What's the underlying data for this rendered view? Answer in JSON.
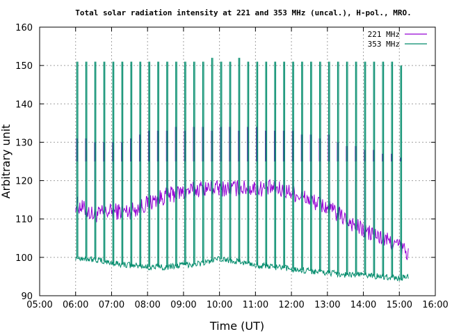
{
  "chart_data": {
    "type": "line",
    "title": "Total solar radiation intensity at 221 and 353 MHz (uncal.), H-pol., MRO.",
    "xlabel": "Time (UT)",
    "ylabel": "Arbitrary unit",
    "xlim": [
      "05:00",
      "16:00"
    ],
    "ylim": [
      90,
      160
    ],
    "xticks": [
      "05:00",
      "06:00",
      "07:00",
      "08:00",
      "09:00",
      "10:00",
      "11:00",
      "12:00",
      "13:00",
      "14:00",
      "15:00",
      "16:00"
    ],
    "yticks": [
      90,
      100,
      110,
      120,
      130,
      140,
      150,
      160
    ],
    "grid": true,
    "legend_position": "top-right",
    "series": [
      {
        "name": "221 MHz",
        "color": "#9400d3",
        "x": [
          "06:00",
          "06:30",
          "07:00",
          "07:30",
          "08:00",
          "08:30",
          "09:00",
          "09:30",
          "10:00",
          "10:30",
          "11:00",
          "11:30",
          "12:00",
          "12:30",
          "13:00",
          "13:30",
          "14:00",
          "14:30",
          "15:00",
          "15:15"
        ],
        "values": [
          114,
          111,
          112,
          112,
          114,
          116,
          117,
          118,
          118,
          118,
          118,
          118,
          117,
          115,
          113,
          110,
          107,
          105,
          103,
          101
        ],
        "spikes": [
          {
            "time": "06:02",
            "value": 131
          },
          {
            "time": "06:17",
            "value": 131
          },
          {
            "time": "06:32",
            "value": 130
          },
          {
            "time": "06:47",
            "value": 130
          },
          {
            "time": "07:02",
            "value": 130
          },
          {
            "time": "07:17",
            "value": 130
          },
          {
            "time": "07:32",
            "value": 131
          },
          {
            "time": "07:47",
            "value": 132
          },
          {
            "time": "08:02",
            "value": 133
          },
          {
            "time": "08:17",
            "value": 133
          },
          {
            "time": "08:32",
            "value": 133
          },
          {
            "time": "08:47",
            "value": 134
          },
          {
            "time": "09:02",
            "value": 133
          },
          {
            "time": "09:17",
            "value": 134
          },
          {
            "time": "09:32",
            "value": 134
          },
          {
            "time": "09:47",
            "value": 133
          },
          {
            "time": "10:02",
            "value": 134
          },
          {
            "time": "10:17",
            "value": 134
          },
          {
            "time": "10:32",
            "value": 133
          },
          {
            "time": "10:47",
            "value": 134
          },
          {
            "time": "11:02",
            "value": 134
          },
          {
            "time": "11:17",
            "value": 133
          },
          {
            "time": "11:32",
            "value": 133
          },
          {
            "time": "11:47",
            "value": 133
          },
          {
            "time": "12:02",
            "value": 133
          },
          {
            "time": "12:17",
            "value": 132
          },
          {
            "time": "12:32",
            "value": 132
          },
          {
            "time": "12:47",
            "value": 131
          },
          {
            "time": "13:02",
            "value": 132
          },
          {
            "time": "13:17",
            "value": 130
          },
          {
            "time": "13:32",
            "value": 129
          },
          {
            "time": "13:47",
            "value": 129
          },
          {
            "time": "14:02",
            "value": 128
          },
          {
            "time": "14:17",
            "value": 128
          },
          {
            "time": "14:32",
            "value": 127
          },
          {
            "time": "14:47",
            "value": 127
          },
          {
            "time": "15:02",
            "value": 126
          }
        ]
      },
      {
        "name": "353 MHz",
        "color": "#008b6b",
        "x": [
          "06:00",
          "06:30",
          "07:00",
          "07:30",
          "08:00",
          "08:30",
          "09:00",
          "09:30",
          "10:00",
          "10:30",
          "11:00",
          "11:30",
          "12:00",
          "12:30",
          "13:00",
          "13:30",
          "14:00",
          "14:30",
          "15:00",
          "15:15"
        ],
        "values": [
          100,
          99.5,
          98.5,
          98,
          97.5,
          97.5,
          98,
          98.5,
          99.5,
          99,
          98,
          97.5,
          97,
          96.5,
          96,
          95.5,
          95.5,
          95,
          94.5,
          95
        ],
        "spikes": [
          {
            "time": "06:02",
            "value": 151
          },
          {
            "time": "06:17",
            "value": 151
          },
          {
            "time": "06:32",
            "value": 151
          },
          {
            "time": "06:47",
            "value": 151
          },
          {
            "time": "07:02",
            "value": 151
          },
          {
            "time": "07:17",
            "value": 151
          },
          {
            "time": "07:32",
            "value": 151
          },
          {
            "time": "07:47",
            "value": 151
          },
          {
            "time": "08:02",
            "value": 151
          },
          {
            "time": "08:17",
            "value": 151
          },
          {
            "time": "08:32",
            "value": 151
          },
          {
            "time": "08:47",
            "value": 151
          },
          {
            "time": "09:02",
            "value": 151
          },
          {
            "time": "09:17",
            "value": 151
          },
          {
            "time": "09:32",
            "value": 151
          },
          {
            "time": "09:47",
            "value": 152
          },
          {
            "time": "10:02",
            "value": 151
          },
          {
            "time": "10:17",
            "value": 151
          },
          {
            "time": "10:32",
            "value": 152
          },
          {
            "time": "10:47",
            "value": 151
          },
          {
            "time": "11:02",
            "value": 151
          },
          {
            "time": "11:17",
            "value": 151
          },
          {
            "time": "11:32",
            "value": 151
          },
          {
            "time": "11:47",
            "value": 151
          },
          {
            "time": "12:02",
            "value": 151
          },
          {
            "time": "12:17",
            "value": 151
          },
          {
            "time": "12:32",
            "value": 151
          },
          {
            "time": "12:47",
            "value": 151
          },
          {
            "time": "13:02",
            "value": 151
          },
          {
            "time": "13:17",
            "value": 151
          },
          {
            "time": "13:32",
            "value": 151
          },
          {
            "time": "13:47",
            "value": 151
          },
          {
            "time": "14:02",
            "value": 151
          },
          {
            "time": "14:17",
            "value": 151
          },
          {
            "time": "14:32",
            "value": 151
          },
          {
            "time": "14:47",
            "value": 151
          },
          {
            "time": "15:02",
            "value": 150
          }
        ]
      }
    ]
  }
}
